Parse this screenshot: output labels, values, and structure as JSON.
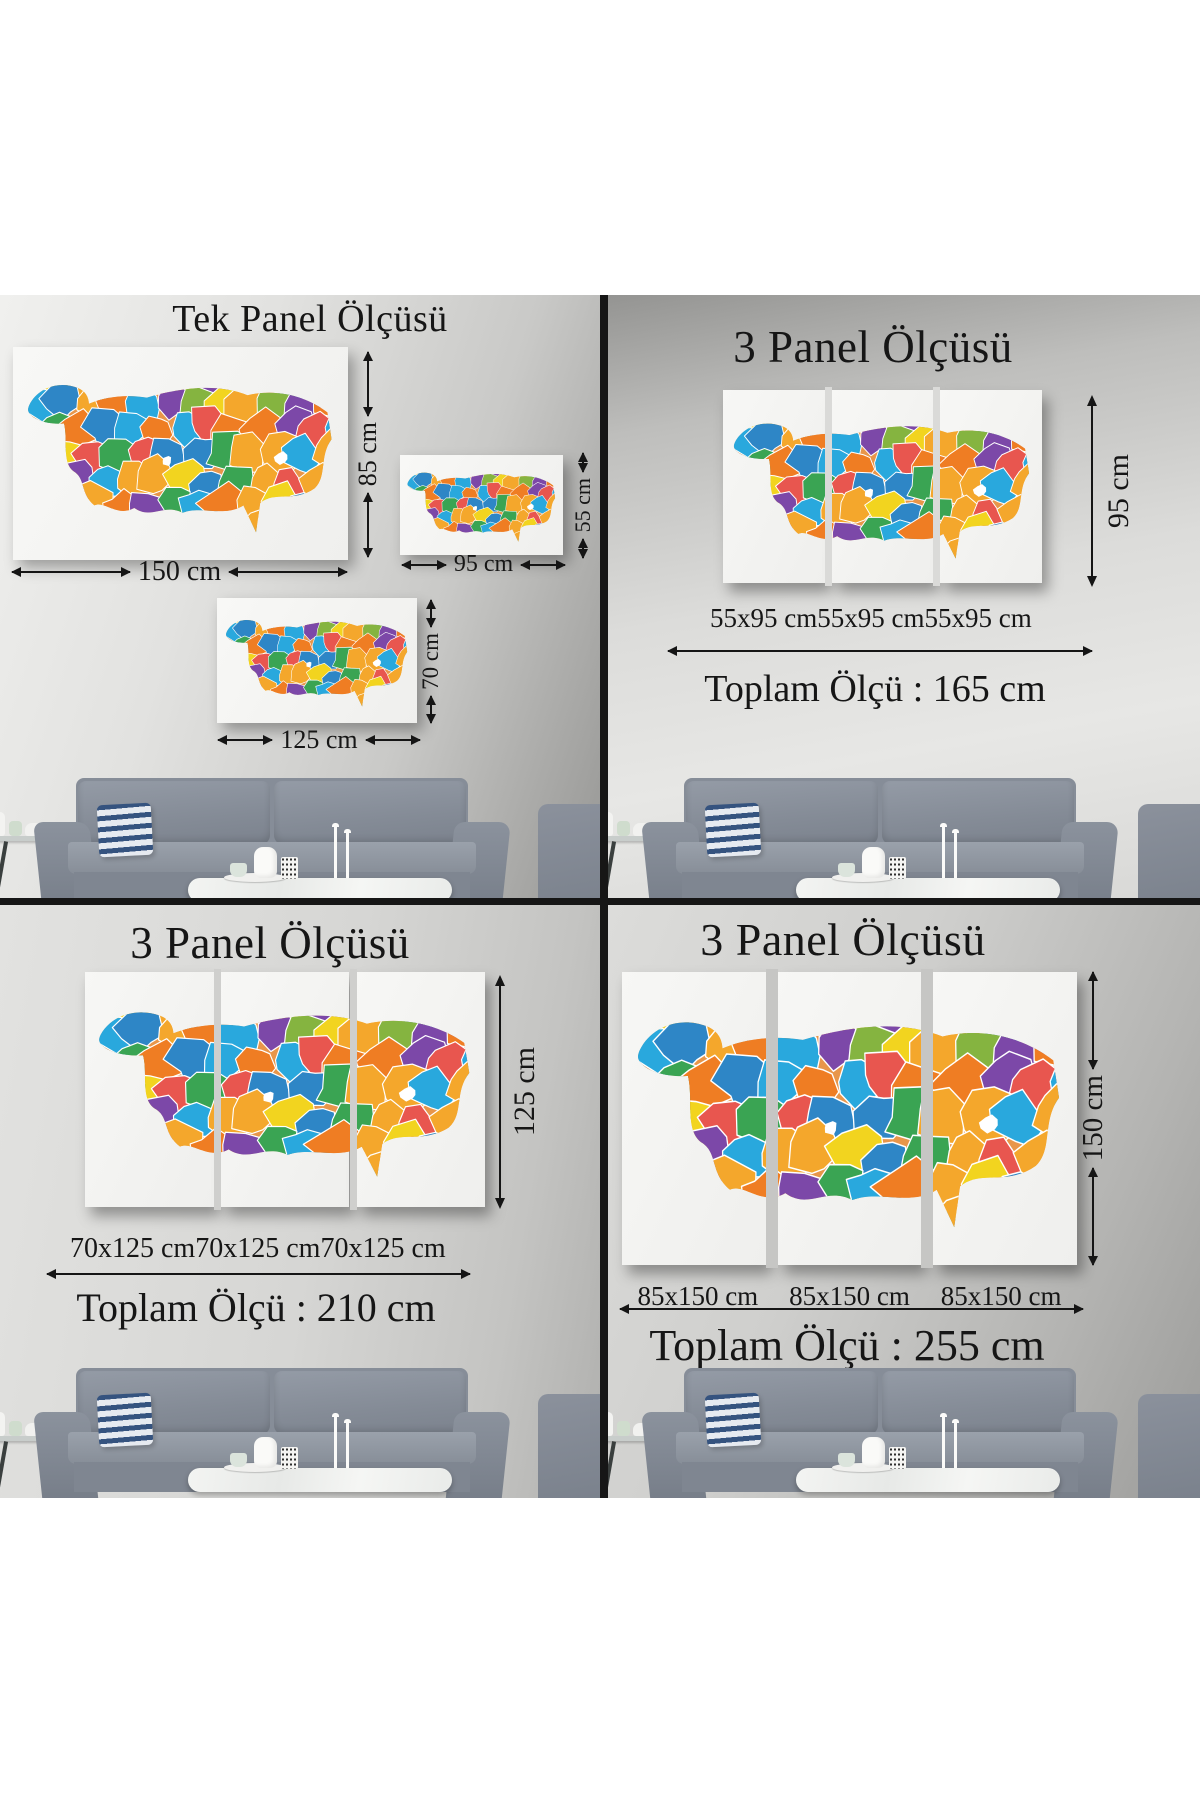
{
  "colors": {
    "divider": "#161616",
    "arrow": "#151515",
    "text": "#161616",
    "canvas_white": "#f6f6f4",
    "map_palette": [
      "#2e86c6",
      "#3aa453",
      "#ef7d23",
      "#e8564f",
      "#f2d41f",
      "#7c48a8",
      "#29a8dd",
      "#f4a72c",
      "#85b440"
    ]
  },
  "tl": {
    "title": "Tek Panel Ölçüsü",
    "canvas1": {
      "width_label": "150 cm",
      "height_label": "85 cm"
    },
    "canvas2": {
      "width_label": "95 cm",
      "height_label": "55 cm"
    },
    "canvas3": {
      "width_label": "125 cm",
      "height_label": "70 cm"
    }
  },
  "tr": {
    "title": "3 Panel Ölçüsü",
    "height_label": "95 cm",
    "panel_labels": [
      "55x95 cm",
      "55x95 cm",
      "55x95 cm"
    ],
    "total_label": "Toplam Ölçü : 165 cm"
  },
  "bl": {
    "title": "3 Panel Ölçüsü",
    "height_label": "125 cm",
    "panel_labels": [
      "70x125 cm",
      "70x125 cm",
      "70x125 cm"
    ],
    "total_label": "Toplam Ölçü : 210 cm"
  },
  "br": {
    "title": "3 Panel Ölçüsü",
    "height_label": "150 cm",
    "panel_labels": [
      "85x150 cm",
      "85x150 cm",
      "85x150 cm"
    ],
    "total_label": "Toplam Ölçü : 255 cm"
  }
}
